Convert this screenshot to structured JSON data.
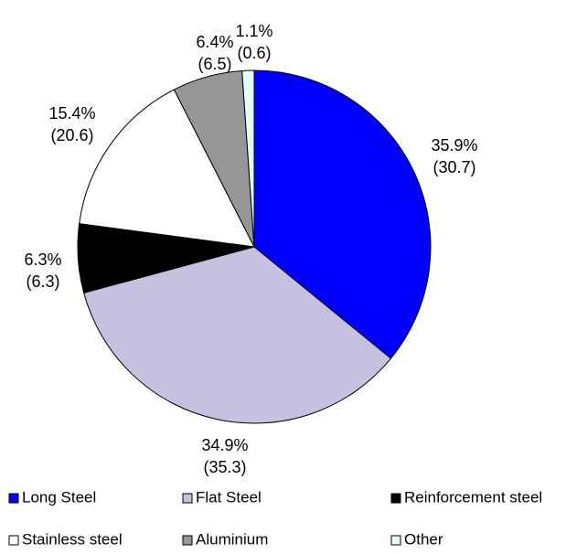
{
  "chart_data": {
    "type": "pie",
    "categories": [
      "Long Steel",
      "Flat Steel",
      "Reinforcement steel",
      "Stainless steel",
      "Aluminium",
      "Other"
    ],
    "values": [
      35.9,
      34.9,
      6.3,
      15.4,
      6.4,
      1.1
    ],
    "value_labels": [
      "35.9%",
      "34.9%",
      "6.3%",
      "15.4%",
      "6.4%",
      "1.1%"
    ],
    "values2": [
      30.7,
      35.3,
      6.3,
      20.6,
      6.5,
      0.6
    ],
    "value2_labels": [
      "(30.7)",
      "(35.3)",
      "(6.3)",
      "(20.6)",
      "(6.5)",
      "(0.6)"
    ],
    "colors": [
      "#0000ff",
      "#c8c0e0",
      "#000000",
      "#ffffff",
      "#969696",
      "#e0ffff"
    ]
  }
}
